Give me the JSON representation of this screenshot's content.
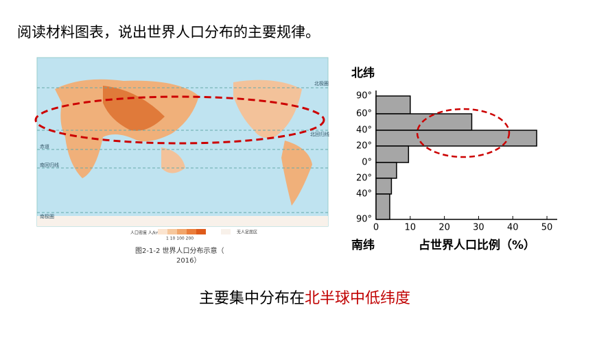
{
  "slide": {
    "question": "阅读材料图表，说出世界人口分布的主要规律。",
    "answer_prefix": "主要集中分布在",
    "answer_highlight": "北半球中低纬度"
  },
  "map": {
    "caption_line1": "图2-1-2  世界人口分布示意（",
    "caption_line2": "2016）",
    "legend_title": "人口密度 人/km²",
    "legend_scale": "1   10  100  200",
    "legend_empty": "无人定居区",
    "labels": [
      "北极圈",
      "北回归线",
      "赤道",
      "南回归线",
      "南极圈"
    ]
  },
  "chart_data": {
    "type": "bar",
    "orientation": "horizontal",
    "categories": [
      null,
      null,
      null,
      null,
      null,
      null,
      null
    ],
    "values": [
      10,
      28,
      47,
      9.5,
      6,
      4.5,
      4
    ],
    "y_labels": [
      "90°",
      "60°",
      "40°",
      "20°",
      "0°",
      "20°",
      "40°",
      "90°"
    ],
    "y_top_label": "北纬",
    "y_bottom_label": "南纬",
    "xlabel": "占世界人口比例（%）",
    "xlim": [
      0,
      53
    ],
    "xticks": [
      0,
      10,
      20,
      30,
      40,
      50
    ],
    "color": "#a6a6a6"
  }
}
